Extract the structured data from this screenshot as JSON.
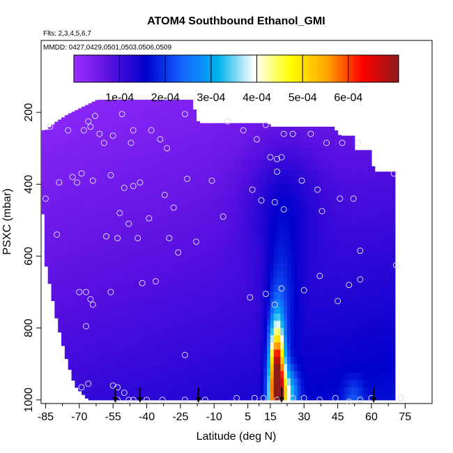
{
  "chart_data": {
    "type": "heatmap",
    "title": "ATOM4 Southbound Ethanol_GMI",
    "flights_label": "Flts: 2,3,4,5,6,7",
    "dates_label": "MMDD: 0427,0429,0501,0503,0506,0509",
    "xlabel": "Latitude (deg N)",
    "ylabel": "PSXC (mbar)",
    "xlim": [
      -87,
      87
    ],
    "ylim": [
      1010,
      0
    ],
    "x_ticks": [
      -85,
      -70,
      -55,
      -40,
      -25,
      -10,
      5,
      15,
      30,
      45,
      60,
      75
    ],
    "x_tick_labels": [
      "-85",
      "-70",
      "-55",
      "-40",
      "-25",
      "-10",
      "5",
      "15",
      "30",
      "45",
      "60",
      "75"
    ],
    "y_ticks": [
      200,
      400,
      600,
      800,
      1000
    ],
    "y_tick_labels": [
      "200",
      "400",
      "600",
      "800",
      "1000"
    ],
    "colorbar": {
      "range": [
        0,
        0.00071
      ],
      "ticks": [
        0.0001,
        0.0002,
        0.0003,
        0.0004,
        0.0005,
        0.0006
      ],
      "tick_labels": [
        "1e-04",
        "2e-04",
        "3e-04",
        "4e-04",
        "5e-04",
        "6e-04"
      ],
      "colors": [
        "#9b30ff",
        "#5a10e0",
        "#0000cd",
        "#1565ff",
        "#00b2ee",
        "#ffffff",
        "#ffff00",
        "#ffa500",
        "#ff0000",
        "#8b1a1a"
      ]
    },
    "grid": false,
    "legend_position": "top",
    "domain_top_mbar": [
      [
        -85,
        250
      ],
      [
        -80,
        225
      ],
      [
        -75,
        205
      ],
      [
        -62,
        165
      ],
      [
        -47,
        165
      ],
      [
        -33,
        165
      ],
      [
        -20,
        165
      ],
      [
        -17,
        230
      ],
      [
        0,
        230
      ],
      [
        14,
        230
      ],
      [
        15,
        240
      ],
      [
        43,
        240
      ],
      [
        46,
        265
      ],
      [
        52,
        265
      ],
      [
        53,
        305
      ],
      [
        60,
        305
      ],
      [
        61,
        365
      ],
      [
        71,
        365
      ]
    ],
    "domain_bottom_mbar": [
      [
        -87,
        400
      ],
      [
        -86,
        510
      ],
      [
        -85,
        620
      ],
      [
        -80,
        780
      ],
      [
        -76,
        880
      ],
      [
        -72,
        960
      ],
      [
        -66,
        1000
      ],
      [
        0,
        1000
      ],
      [
        72,
        1000
      ]
    ],
    "field_model": {
      "background": 2e-05,
      "bg_lat_slope": 9e-07,
      "bg_pressure_slope": 1.1e-07,
      "plumes": [
        {
          "lat": 18,
          "pressure": 1000,
          "amp": 0.00052,
          "lat_width": 2.5,
          "p_width": 110
        },
        {
          "lat": 23,
          "pressure": 980,
          "amp": 0.00018,
          "lat_width": 3,
          "p_width": 45
        },
        {
          "lat": 18,
          "pressure": 880,
          "amp": 0.00022,
          "lat_width": 2.2,
          "p_width": 90
        },
        {
          "lat": 20,
          "pressure": 700,
          "amp": 7e-05,
          "lat_width": 5,
          "p_width": 120
        },
        {
          "lat": 20,
          "pressure": 450,
          "amp": 6e-05,
          "lat_width": 12,
          "p_width": 120
        },
        {
          "lat": 52,
          "pressure": 1000,
          "amp": 6e-05,
          "lat_width": 3,
          "p_width": 40
        }
      ]
    },
    "observations": [
      {
        "lat": -83,
        "p": 240
      },
      {
        "lat": -75,
        "p": 250
      },
      {
        "lat": -68,
        "p": 250
      },
      {
        "lat": -66,
        "p": 225
      },
      {
        "lat": -65,
        "p": 240
      },
      {
        "lat": -63,
        "p": 210
      },
      {
        "lat": -61,
        "p": 260
      },
      {
        "lat": -59,
        "p": 285
      },
      {
        "lat": -55,
        "p": 265
      },
      {
        "lat": -51,
        "p": 205
      },
      {
        "lat": -47,
        "p": 285
      },
      {
        "lat": -46,
        "p": 250
      },
      {
        "lat": -38,
        "p": 250
      },
      {
        "lat": -34,
        "p": 275
      },
      {
        "lat": -31,
        "p": 300
      },
      {
        "lat": -23,
        "p": 205
      },
      {
        "lat": -4,
        "p": 225
      },
      {
        "lat": 3,
        "p": 250
      },
      {
        "lat": 9,
        "p": 275
      },
      {
        "lat": 13,
        "p": 235
      },
      {
        "lat": 21,
        "p": 260
      },
      {
        "lat": 25,
        "p": 260
      },
      {
        "lat": 33,
        "p": 260
      },
      {
        "lat": 40,
        "p": 285
      },
      {
        "lat": 47,
        "p": 285
      },
      {
        "lat": 54,
        "p": 285
      },
      {
        "lat": 15,
        "p": 325
      },
      {
        "lat": 18,
        "p": 330
      },
      {
        "lat": 20,
        "p": 325
      },
      {
        "lat": 18,
        "p": 365
      },
      {
        "lat": -79,
        "p": 395
      },
      {
        "lat": -73,
        "p": 380
      },
      {
        "lat": -71,
        "p": 395
      },
      {
        "lat": -69,
        "p": 370
      },
      {
        "lat": -64,
        "p": 390
      },
      {
        "lat": -56,
        "p": 375
      },
      {
        "lat": -46,
        "p": 405
      },
      {
        "lat": -43,
        "p": 395
      },
      {
        "lat": -32,
        "p": 430
      },
      {
        "lat": -22,
        "p": 385
      },
      {
        "lat": -11,
        "p": 390
      },
      {
        "lat": 7,
        "p": 415
      },
      {
        "lat": 11,
        "p": 445
      },
      {
        "lat": 17,
        "p": 450
      },
      {
        "lat": 21,
        "p": 470
      },
      {
        "lat": 29,
        "p": 390
      },
      {
        "lat": 36,
        "p": 415
      },
      {
        "lat": 38,
        "p": 475
      },
      {
        "lat": 46,
        "p": 440
      },
      {
        "lat": 52,
        "p": 440
      },
      {
        "lat": 70,
        "p": 370
      },
      {
        "lat": -85,
        "p": 440
      },
      {
        "lat": -50,
        "p": 410
      },
      {
        "lat": -52,
        "p": 480
      },
      {
        "lat": -48,
        "p": 510
      },
      {
        "lat": -39,
        "p": 495
      },
      {
        "lat": -28,
        "p": 465
      },
      {
        "lat": -6,
        "p": 490
      },
      {
        "lat": -80,
        "p": 540
      },
      {
        "lat": -58,
        "p": 545
      },
      {
        "lat": -53,
        "p": 550
      },
      {
        "lat": -44,
        "p": 550
      },
      {
        "lat": -30,
        "p": 550
      },
      {
        "lat": -26,
        "p": 590
      },
      {
        "lat": -18,
        "p": 560
      },
      {
        "lat": 55,
        "p": 585
      },
      {
        "lat": 71,
        "p": 625
      },
      {
        "lat": -70,
        "p": 700
      },
      {
        "lat": -67,
        "p": 700
      },
      {
        "lat": -65,
        "p": 720
      },
      {
        "lat": -64,
        "p": 735
      },
      {
        "lat": -56,
        "p": 700
      },
      {
        "lat": -42,
        "p": 675
      },
      {
        "lat": -36,
        "p": 670
      },
      {
        "lat": 6,
        "p": 715
      },
      {
        "lat": 13,
        "p": 705
      },
      {
        "lat": 17,
        "p": 735
      },
      {
        "lat": 20,
        "p": 690
      },
      {
        "lat": 30,
        "p": 695
      },
      {
        "lat": 37,
        "p": 655
      },
      {
        "lat": 45,
        "p": 725
      },
      {
        "lat": 50,
        "p": 680
      },
      {
        "lat": 55,
        "p": 665
      },
      {
        "lat": -67,
        "p": 795
      },
      {
        "lat": -23,
        "p": 875
      },
      {
        "lat": -69,
        "p": 965
      },
      {
        "lat": -66,
        "p": 955
      },
      {
        "lat": -55,
        "p": 960
      },
      {
        "lat": -53,
        "p": 965
      },
      {
        "lat": -50,
        "p": 980
      },
      {
        "lat": -48,
        "p": 1000
      },
      {
        "lat": -53,
        "p": 1000
      },
      {
        "lat": -46,
        "p": 1000
      },
      {
        "lat": -40,
        "p": 1000
      },
      {
        "lat": -33,
        "p": 1000
      },
      {
        "lat": -23,
        "p": 1000
      },
      {
        "lat": -14,
        "p": 1000
      },
      {
        "lat": 0,
        "p": 995
      },
      {
        "lat": 8,
        "p": 995
      },
      {
        "lat": 12,
        "p": 995
      },
      {
        "lat": 18,
        "p": 1000
      },
      {
        "lat": 25,
        "p": 995
      },
      {
        "lat": 30,
        "p": 995
      },
      {
        "lat": 37,
        "p": 1000
      },
      {
        "lat": 44,
        "p": 995
      },
      {
        "lat": 50,
        "p": 1005
      },
      {
        "lat": 55,
        "p": 1000
      },
      {
        "lat": 60,
        "p": 995
      },
      {
        "lat": 73,
        "p": 995
      }
    ],
    "arrow_latitudes": [
      -54,
      -43,
      -17,
      20,
      61
    ]
  }
}
